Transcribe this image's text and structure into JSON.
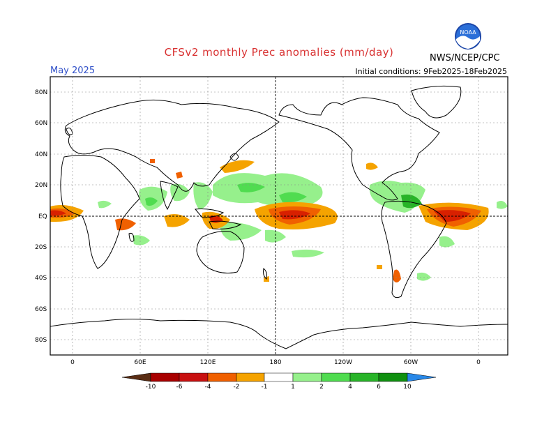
{
  "title": "CFSv2 monthly Prec anomalies (mm/day)",
  "valid_month": "May 2025",
  "initial_conditions": "Initial conditions: 9Feb2025-18Feb2025",
  "agency": "NWS/NCEP/CPC",
  "logo_text": "NOAA",
  "colors": {
    "title": "#d83030",
    "month": "#3050c8",
    "dry_light": "#f5a300",
    "dry_mid": "#f06000",
    "dry_strong": "#d82000",
    "dry_extreme": "#a80000",
    "wet_light": "#96f08c",
    "wet_mid": "#50dc50",
    "wet_strong": "#28b428",
    "wet_extreme": "#109010"
  },
  "map": {
    "lat_labels": [
      "80N",
      "60N",
      "40N",
      "20N",
      "EQ",
      "20S",
      "40S",
      "60S",
      "80S"
    ],
    "lon_labels": [
      "0",
      "60E",
      "120E",
      "180",
      "120W",
      "60W",
      "0"
    ]
  },
  "colorbar": {
    "labels": [
      "-10",
      "-6",
      "-4",
      "-2",
      "-1",
      "1",
      "2",
      "4",
      "6",
      "10"
    ],
    "colors": [
      "#5a2d14",
      "#a80000",
      "#c81010",
      "#e83010",
      "#f06000",
      "#f5a300",
      "#ffffff",
      "#96f08c",
      "#50dc50",
      "#28b428",
      "#109010",
      "#2888e8"
    ]
  }
}
